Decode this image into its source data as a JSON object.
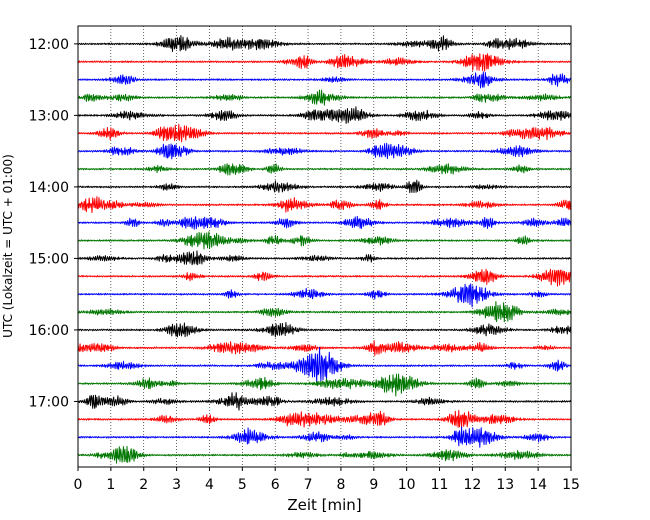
{
  "chart_data": {
    "type": "line",
    "title": "",
    "xlabel": "Zeit  [min]",
    "ylabel": "UTC (Lokalzeit = UTC + 01:00)",
    "xlim": [
      0,
      15
    ],
    "x_ticks": [
      "0",
      "1",
      "2",
      "3",
      "4",
      "5",
      "6",
      "7",
      "8",
      "9",
      "10",
      "11",
      "12",
      "13",
      "14",
      "15"
    ],
    "y_ticks": [
      "12:00",
      "13:00",
      "14:00",
      "15:00",
      "16:00",
      "17:00"
    ],
    "ylim": [
      "11:45",
      "17:55"
    ],
    "grid": {
      "vertical": "dotted",
      "horizontal": "none"
    },
    "row_interval_min": 15,
    "color_cycle": [
      "#000000",
      "#ff0000",
      "#0000ff",
      "#007700"
    ],
    "series": [
      {
        "time": "12:00",
        "color": "#000000"
      },
      {
        "time": "12:15",
        "color": "#ff0000"
      },
      {
        "time": "12:30",
        "color": "#0000ff"
      },
      {
        "time": "12:45",
        "color": "#007700"
      },
      {
        "time": "13:00",
        "color": "#000000"
      },
      {
        "time": "13:15",
        "color": "#ff0000"
      },
      {
        "time": "13:30",
        "color": "#0000ff"
      },
      {
        "time": "13:45",
        "color": "#007700"
      },
      {
        "time": "14:00",
        "color": "#000000"
      },
      {
        "time": "14:15",
        "color": "#ff0000"
      },
      {
        "time": "14:30",
        "color": "#0000ff"
      },
      {
        "time": "14:45",
        "color": "#007700"
      },
      {
        "time": "15:00",
        "color": "#000000"
      },
      {
        "time": "15:15",
        "color": "#ff0000"
      },
      {
        "time": "15:30",
        "color": "#0000ff"
      },
      {
        "time": "15:45",
        "color": "#007700"
      },
      {
        "time": "16:00",
        "color": "#000000"
      },
      {
        "time": "16:15",
        "color": "#ff0000"
      },
      {
        "time": "16:30",
        "color": "#0000ff"
      },
      {
        "time": "16:45",
        "color": "#007700"
      },
      {
        "time": "17:00",
        "color": "#000000"
      },
      {
        "time": "17:15",
        "color": "#ff0000"
      },
      {
        "time": "17:30",
        "color": "#0000ff"
      },
      {
        "time": "17:45",
        "color": "#007700"
      }
    ]
  }
}
